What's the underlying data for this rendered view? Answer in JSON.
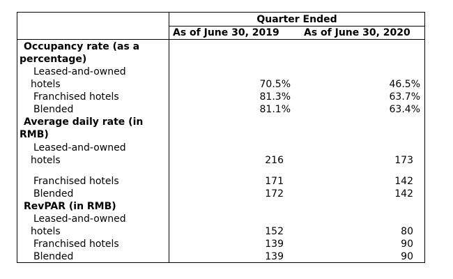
{
  "header": {
    "group": "Quarter Ended",
    "col1": "As of June 30, 2019",
    "col2": "As of June 30, 2020"
  },
  "sections": [
    {
      "title_line1": "Occupancy rate (as a",
      "title_line2": "percentage)",
      "rows": [
        {
          "label_line1": "Leased-and-owned",
          "label_line2": "hotels",
          "v2019": "70.5%",
          "v2020": "46.5%"
        },
        {
          "label": "Franchised hotels",
          "v2019": "81.3%",
          "v2020": "63.7%"
        },
        {
          "label": "Blended",
          "v2019": "81.1%",
          "v2020": "63.4%"
        }
      ]
    },
    {
      "title_line1": "Average daily rate (in",
      "title_line2": "RMB)",
      "rows": [
        {
          "label_line1": "Leased-and-owned",
          "label_line2": "hotels",
          "v2019": "216",
          "v2020": "173"
        },
        {
          "label": "Franchised hotels",
          "v2019": "171",
          "v2020": "142"
        },
        {
          "label": "Blended",
          "v2019": "172",
          "v2020": "142"
        }
      ]
    },
    {
      "title_line1": "RevPAR (in RMB)",
      "rows": [
        {
          "label_line1": "Leased-and-owned",
          "label_line2": "hotels",
          "v2019": "152",
          "v2020": "80"
        },
        {
          "label": "Franchised hotels",
          "v2019": "139",
          "v2020": "90"
        },
        {
          "label": "Blended",
          "v2019": "139",
          "v2020": "90"
        }
      ]
    }
  ]
}
